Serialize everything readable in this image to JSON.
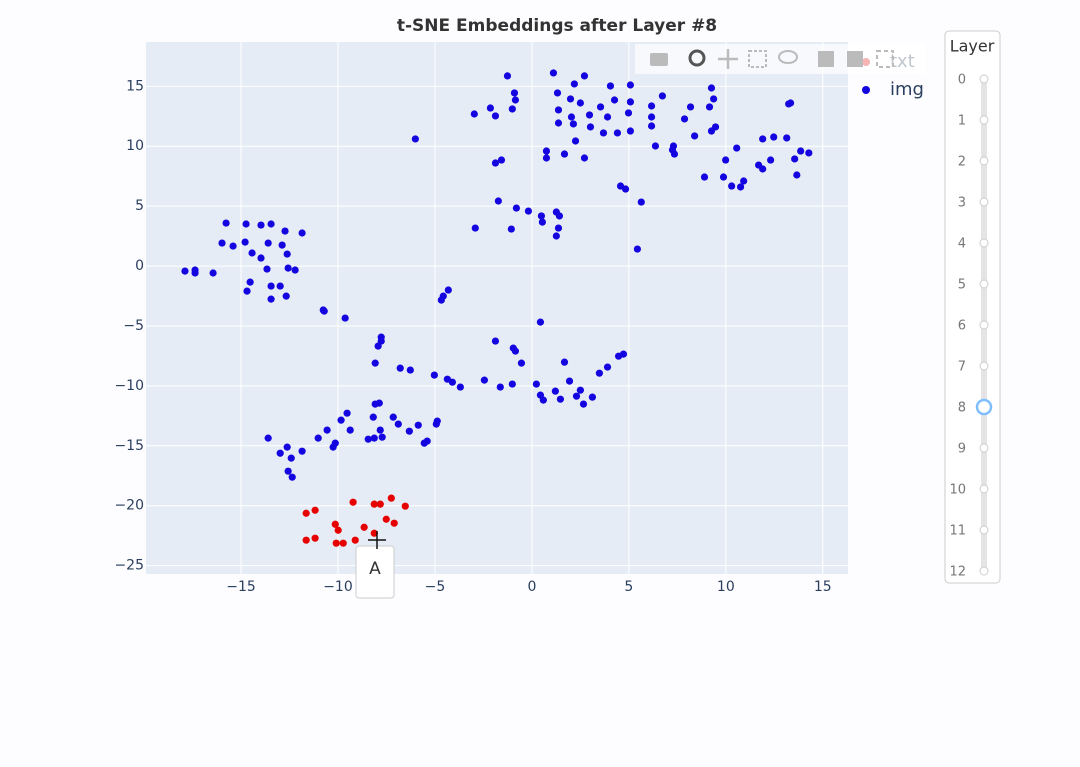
{
  "chart_data": {
    "type": "scatter",
    "title": "t-SNE Embeddings after Layer #8",
    "xlim": [
      -19.9,
      16.3
    ],
    "ylim": [
      -25.7,
      18.7
    ],
    "xticks": [
      {
        "value": -15,
        "label": "−15"
      },
      {
        "value": -10,
        "label": "−10"
      },
      {
        "value": -5,
        "label": "−5"
      },
      0,
      5,
      10,
      15
    ],
    "yticks": [
      {
        "value": -25,
        "label": "−25"
      },
      {
        "value": -20,
        "label": "−20"
      },
      {
        "value": -15,
        "label": "−15"
      },
      {
        "value": -10,
        "label": "−10"
      },
      {
        "value": -5,
        "label": "−5"
      },
      0,
      5,
      10,
      15
    ],
    "grid": true,
    "series": [
      {
        "name": "txt",
        "color": "#e60000",
        "x": [
          -11.64,
          -11.18,
          -11.64,
          -11.18,
          -10.14,
          -9.99,
          -10.09,
          -9.73,
          -9.22,
          -9.11,
          -8.65,
          -8.13,
          -8.13,
          -7.82,
          -7.51,
          -7.25,
          -7.1,
          -6.53
        ],
        "values": [
          -20.63,
          -20.38,
          -22.88,
          -22.71,
          -21.55,
          -22.05,
          -23.13,
          -23.13,
          -19.71,
          -22.88,
          -21.8,
          -19.87,
          -22.3,
          -19.87,
          -21.13,
          -19.37,
          -21.46,
          -20.04
        ]
      },
      {
        "name": "img",
        "color": "#1405e0",
        "x": [
          -17.89,
          -17.37,
          -17.37,
          -16.44,
          -15.98,
          -15.77,
          -15.41,
          -14.74,
          -14.79,
          -14.43,
          -14.69,
          -14.53,
          -13.97,
          -13.97,
          -13.45,
          -13.6,
          -13.66,
          -13.45,
          -13.45,
          -12.98,
          -12.88,
          -12.73,
          -12.62,
          -12.67,
          -12.57,
          -12.21,
          -11.85,
          -10.76,
          -10.71,
          -9.63,
          -7.77,
          -7.77,
          -7.93,
          -8.08,
          -6.79,
          -6.27,
          -4.67,
          -4.57,
          -4.31,
          -6.01,
          -5.03,
          -4.36,
          -4.1,
          -3.69,
          -2.45,
          -1.88,
          -1.63,
          -1.01,
          -0.96,
          -0.85,
          -0.54,
          0.23,
          0.44,
          0.44,
          0.59,
          1.21,
          1.47,
          1.68,
          1.94,
          2.3,
          2.5,
          2.66,
          3.12,
          3.48,
          3.9,
          4.47,
          4.72,
          -13.6,
          -12.98,
          -12.62,
          -12.57,
          -12.36,
          -12.41,
          -11.85,
          -11.02,
          -10.56,
          -10.25,
          -10.14,
          -9.84,
          -9.53,
          -9.37,
          -8.44,
          -8.13,
          -8.18,
          -8.08,
          -7.87,
          -7.82,
          -7.72,
          -7.15,
          -6.89,
          -6.32,
          -5.86,
          -5.55,
          -5.4,
          -4.93,
          -4.88,
          -2.97,
          -2.92,
          -2.14,
          -1.88,
          -1.88,
          -1.57,
          -1.73,
          -1.26,
          -0.9,
          -0.85,
          -1.01,
          -1.06,
          -0.8,
          -0.18,
          0.49,
          0.54,
          0.75,
          0.75,
          1.11,
          1.32,
          1.37,
          1.37,
          1.26,
          1.42,
          1.37,
          1.26,
          1.68,
          1.99,
          2.04,
          2.19,
          2.14,
          2.25,
          2.5,
          2.71,
          2.71,
          2.97,
          3.02,
          3.54,
          3.69,
          3.9,
          4.05,
          4.26,
          4.41,
          4.57,
          4.83,
          4.98,
          5.08,
          5.08,
          5.08,
          5.64,
          5.44,
          6.17,
          6.17,
          6.17,
          6.37,
          6.73,
          7.25,
          7.35,
          7.3,
          7.87,
          8.18,
          8.39,
          8.9,
          9.16,
          9.26,
          9.37,
          9.26,
          9.47,
          9.88,
          9.99,
          10.3,
          10.56,
          10.76,
          10.92,
          11.69,
          11.9,
          11.9,
          12.31,
          12.47,
          13.14,
          13.24,
          13.34,
          13.55,
          13.66,
          13.86,
          14.28
        ],
        "values": [
          -0.42,
          -0.33,
          -0.58,
          -0.58,
          1.92,
          3.59,
          1.67,
          3.51,
          2.0,
          1.09,
          -2.09,
          -1.34,
          3.42,
          0.67,
          3.51,
          1.92,
          -0.25,
          -1.67,
          -2.76,
          -1.67,
          1.75,
          2.92,
          1.0,
          -2.51,
          -0.17,
          -0.33,
          2.76,
          -3.67,
          -3.76,
          -4.34,
          -5.93,
          -6.26,
          -6.68,
          -8.1,
          -8.52,
          -8.68,
          -2.84,
          -2.51,
          -2.0,
          10.61,
          -9.1,
          -9.44,
          -9.69,
          -10.1,
          -9.52,
          -6.26,
          -10.1,
          -9.85,
          -6.85,
          -7.1,
          -8.1,
          -9.85,
          -10.77,
          -4.68,
          -11.19,
          -10.44,
          -11.11,
          -8.02,
          -9.6,
          -10.86,
          -10.36,
          -11.52,
          -10.94,
          -8.94,
          -8.43,
          -7.52,
          -7.35,
          -14.36,
          -15.62,
          -15.11,
          -17.12,
          -17.62,
          -16.03,
          -15.45,
          -14.36,
          -13.69,
          -15.11,
          -14.78,
          -12.86,
          -12.28,
          -13.69,
          -14.45,
          -14.36,
          -12.61,
          -11.52,
          -11.44,
          -13.69,
          -14.28,
          -12.61,
          -13.19,
          -13.78,
          -13.28,
          -14.78,
          -14.61,
          -13.19,
          -12.94,
          12.69,
          3.17,
          13.19,
          12.53,
          8.6,
          8.85,
          5.43,
          15.87,
          14.45,
          13.86,
          13.11,
          3.09,
          4.84,
          4.59,
          4.18,
          3.67,
          9.6,
          9.02,
          16.12,
          14.45,
          13.03,
          11.94,
          4.51,
          4.18,
          3.17,
          2.51,
          9.35,
          13.95,
          12.44,
          15.2,
          11.86,
          10.44,
          13.61,
          15.87,
          9.02,
          12.61,
          11.61,
          13.28,
          11.11,
          12.44,
          15.03,
          13.86,
          11.11,
          6.68,
          6.43,
          12.78,
          15.11,
          13.7,
          11.27,
          5.34,
          1.42,
          13.36,
          12.44,
          11.69,
          10.02,
          14.2,
          9.69,
          9.35,
          10.02,
          12.28,
          13.28,
          10.86,
          7.43,
          13.28,
          14.86,
          13.95,
          11.27,
          11.61,
          7.43,
          8.85,
          6.68,
          9.85,
          6.6,
          7.1,
          8.43,
          8.1,
          10.61,
          8.85,
          10.77,
          10.69,
          13.53,
          13.61,
          8.94,
          7.6,
          9.6,
          9.44
        ]
      }
    ]
  },
  "slider": {
    "label": "Layer",
    "steps": [
      0,
      1,
      2,
      3,
      4,
      5,
      6,
      7,
      8,
      9,
      10,
      11,
      12
    ],
    "active": 8
  },
  "hover_label": "A"
}
